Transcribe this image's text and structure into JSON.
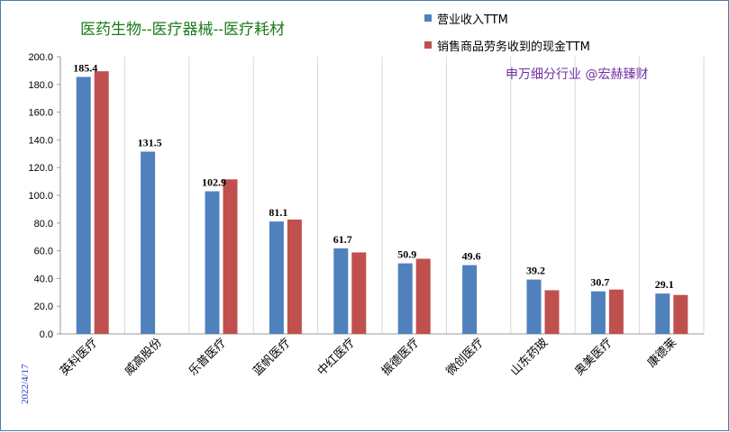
{
  "chart_data": {
    "type": "bar",
    "title": "医药生物--医疗器械--医疗耗材",
    "source_note": "申万细分行业 @宏赫臻财",
    "date_note": "2022/4/17",
    "categories": [
      "英科医疗",
      "威高股份",
      "乐普医疗",
      "蓝帆医疗",
      "中红医疗",
      "振德医疗",
      "微创医疗",
      "山东药玻",
      "奥美医疗",
      "康德莱"
    ],
    "series": [
      {
        "name": "营业收入TTM",
        "color": "#4f81bd",
        "values": [
          185.4,
          131.5,
          102.9,
          81.1,
          61.7,
          50.9,
          49.6,
          39.2,
          30.7,
          29.1
        ],
        "labels": [
          "185.4",
          "131.5",
          "102.9",
          "81.1",
          "61.7",
          "50.9",
          "49.6",
          "39.2",
          "30.7",
          "29.1"
        ]
      },
      {
        "name": "销售商品劳务收到的现金TTM",
        "color": "#c0504d",
        "values": [
          189.5,
          null,
          111.5,
          82.5,
          58.8,
          54.2,
          null,
          31.5,
          32.0,
          28.1
        ]
      }
    ],
    "ylim": [
      0,
      200
    ],
    "yticks": [
      "0.0",
      "20.0",
      "40.0",
      "60.0",
      "80.0",
      "100.0",
      "120.0",
      "140.0",
      "160.0",
      "180.0",
      "200.0"
    ],
    "xlabel": "",
    "ylabel": "",
    "grid": "vertical",
    "legend_position": "top-right"
  }
}
